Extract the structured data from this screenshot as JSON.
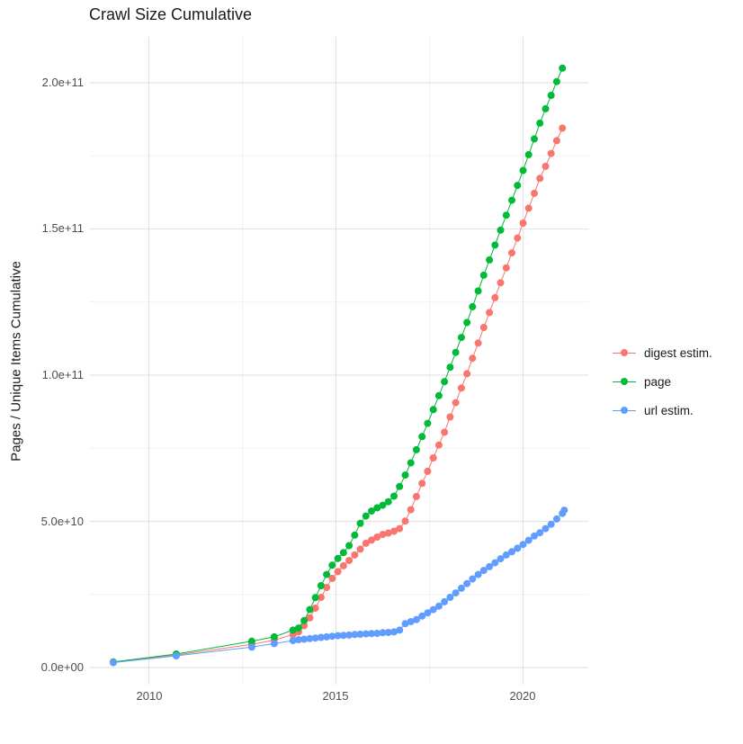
{
  "title": "Crawl Size Cumulative",
  "y_axis": {
    "title": "Pages / Unique Items Cumulative",
    "ticks": [
      "0.0e+00",
      "5.0e+10",
      "1.0e+11",
      "1.5e+11",
      "2.0e+11"
    ]
  },
  "x_axis": {
    "ticks": [
      "2010",
      "2015",
      "2020"
    ]
  },
  "legend": {
    "items": [
      {
        "label": "digest estim.",
        "color": "#F8766D"
      },
      {
        "label": "page",
        "color": "#00BA38"
      },
      {
        "label": "url estim.",
        "color": "#619CFF"
      }
    ]
  },
  "chart_data": {
    "type": "scatter",
    "style": "points connected by thin lines (ggplot-like)",
    "title": "Crawl Size Cumulative",
    "xlabel": "",
    "ylabel": "Pages / Unique Items Cumulative",
    "x_range": [
      2008.4,
      2021.8
    ],
    "y_range": [
      0,
      215
    ],
    "value_unit": "1e9 (values below are billions of pages / unique items)",
    "x_tick_values": [
      2010,
      2015,
      2020
    ],
    "y_tick_values": [
      0,
      50,
      100,
      150,
      200
    ],
    "y_tick_labels": [
      "0.0e+00",
      "5.0e+10",
      "1.0e+11",
      "1.5e+11",
      "2.0e+11"
    ],
    "x_minor_gridlines": [
      2012.5,
      2017.5
    ],
    "y_minor_gridlines": [
      25,
      75,
      125,
      175
    ],
    "grid": "major and minor, light gray on white",
    "legend_position": "right",
    "series": [
      {
        "name": "digest estim.",
        "color": "#F8766D",
        "points": [
          [
            2009.05,
            1.8
          ],
          [
            2010.73,
            4.3
          ],
          [
            2012.75,
            7.9
          ],
          [
            2013.35,
            9.4
          ],
          [
            2013.85,
            11.3
          ],
          [
            2014.0,
            12.2
          ],
          [
            2014.15,
            14.3
          ],
          [
            2014.3,
            17
          ],
          [
            2014.45,
            20.3
          ],
          [
            2014.6,
            24
          ],
          [
            2014.75,
            27.4
          ],
          [
            2014.9,
            30.5
          ],
          [
            2015.05,
            32.8
          ],
          [
            2015.2,
            34.8
          ],
          [
            2015.35,
            36.6
          ],
          [
            2015.5,
            38.5
          ],
          [
            2015.65,
            40.5
          ],
          [
            2015.8,
            42.5
          ],
          [
            2015.95,
            43.6
          ],
          [
            2016.1,
            44.6
          ],
          [
            2016.25,
            45.5
          ],
          [
            2016.4,
            46.0
          ],
          [
            2016.55,
            46.6
          ],
          [
            2016.7,
            47.5
          ],
          [
            2016.85,
            50.1
          ],
          [
            2017.0,
            54
          ],
          [
            2017.15,
            58.5
          ],
          [
            2017.3,
            63
          ],
          [
            2017.45,
            67.1
          ],
          [
            2017.6,
            71.7
          ],
          [
            2017.75,
            76.1
          ],
          [
            2017.9,
            80.5
          ],
          [
            2018.05,
            85.7
          ],
          [
            2018.2,
            90.6
          ],
          [
            2018.35,
            95.6
          ],
          [
            2018.5,
            100.5
          ],
          [
            2018.65,
            105.8
          ],
          [
            2018.8,
            111
          ],
          [
            2018.95,
            116.3
          ],
          [
            2019.1,
            121.4
          ],
          [
            2019.25,
            126.5
          ],
          [
            2019.4,
            131.6
          ],
          [
            2019.55,
            136.7
          ],
          [
            2019.7,
            141.8
          ],
          [
            2019.85,
            146.9
          ],
          [
            2020.0,
            152
          ],
          [
            2020.15,
            157.1
          ],
          [
            2020.3,
            162.2
          ],
          [
            2020.45,
            167.3
          ],
          [
            2020.6,
            171.4
          ],
          [
            2020.75,
            175.8
          ],
          [
            2020.9,
            180.2
          ],
          [
            2021.05,
            184.5
          ]
        ]
      },
      {
        "name": "page",
        "color": "#00BA38",
        "points": [
          [
            2009.05,
            1.9
          ],
          [
            2010.73,
            4.6
          ],
          [
            2012.75,
            9.0
          ],
          [
            2013.35,
            10.5
          ],
          [
            2013.85,
            12.8
          ],
          [
            2014.0,
            13.5
          ],
          [
            2014.15,
            16.1
          ],
          [
            2014.3,
            19.8
          ],
          [
            2014.45,
            23.9
          ],
          [
            2014.6,
            28
          ],
          [
            2014.75,
            31.8
          ],
          [
            2014.9,
            35
          ],
          [
            2015.05,
            37.3
          ],
          [
            2015.2,
            39.3
          ],
          [
            2015.35,
            41.7
          ],
          [
            2015.5,
            45.3
          ],
          [
            2015.65,
            49.3
          ],
          [
            2015.8,
            51.8
          ],
          [
            2015.95,
            53.5
          ],
          [
            2016.1,
            54.6
          ],
          [
            2016.25,
            55.5
          ],
          [
            2016.4,
            56.7
          ],
          [
            2016.55,
            58.6
          ],
          [
            2016.7,
            61.9
          ],
          [
            2016.85,
            65.8
          ],
          [
            2017.0,
            70
          ],
          [
            2017.15,
            74.5
          ],
          [
            2017.3,
            79
          ],
          [
            2017.45,
            83.5
          ],
          [
            2017.6,
            88.2
          ],
          [
            2017.75,
            93
          ],
          [
            2017.9,
            97.8
          ],
          [
            2018.05,
            102.7
          ],
          [
            2018.2,
            107.8
          ],
          [
            2018.35,
            112.9
          ],
          [
            2018.5,
            118
          ],
          [
            2018.65,
            123.4
          ],
          [
            2018.8,
            128.8
          ],
          [
            2018.95,
            134.2
          ],
          [
            2019.1,
            139.4
          ],
          [
            2019.25,
            144.5
          ],
          [
            2019.4,
            149.6
          ],
          [
            2019.55,
            154.7
          ],
          [
            2019.7,
            159.8
          ],
          [
            2019.85,
            164.9
          ],
          [
            2020.0,
            170
          ],
          [
            2020.15,
            175.4
          ],
          [
            2020.3,
            180.8
          ],
          [
            2020.45,
            186.2
          ],
          [
            2020.6,
            191.1
          ],
          [
            2020.75,
            195.7
          ],
          [
            2020.9,
            200.4
          ],
          [
            2021.05,
            205
          ]
        ]
      },
      {
        "name": "url estim.",
        "color": "#619CFF",
        "points": [
          [
            2009.05,
            1.7
          ],
          [
            2010.73,
            4.0
          ],
          [
            2012.75,
            7.0
          ],
          [
            2013.35,
            8.2
          ],
          [
            2013.85,
            9.2
          ],
          [
            2014.0,
            9.5
          ],
          [
            2014.15,
            9.7
          ],
          [
            2014.3,
            9.9
          ],
          [
            2014.45,
            10.1
          ],
          [
            2014.6,
            10.3
          ],
          [
            2014.75,
            10.5
          ],
          [
            2014.9,
            10.7
          ],
          [
            2015.05,
            10.9
          ],
          [
            2015.2,
            11.0
          ],
          [
            2015.35,
            11.1
          ],
          [
            2015.5,
            11.3
          ],
          [
            2015.65,
            11.4
          ],
          [
            2015.8,
            11.5
          ],
          [
            2015.95,
            11.6
          ],
          [
            2016.1,
            11.7
          ],
          [
            2016.25,
            11.9
          ],
          [
            2016.4,
            12.0
          ],
          [
            2016.55,
            12.2
          ],
          [
            2016.7,
            12.8
          ],
          [
            2016.85,
            15.0
          ],
          [
            2017.0,
            15.7
          ],
          [
            2017.15,
            16.4
          ],
          [
            2017.3,
            17.6
          ],
          [
            2017.45,
            18.7
          ],
          [
            2017.6,
            19.8
          ],
          [
            2017.75,
            21.0
          ],
          [
            2017.9,
            22.5
          ],
          [
            2018.05,
            24.0
          ],
          [
            2018.2,
            25.5
          ],
          [
            2018.35,
            27.1
          ],
          [
            2018.5,
            28.7
          ],
          [
            2018.65,
            30.3
          ],
          [
            2018.8,
            31.8
          ],
          [
            2018.95,
            33.2
          ],
          [
            2019.1,
            34.5
          ],
          [
            2019.25,
            35.8
          ],
          [
            2019.4,
            37.2
          ],
          [
            2019.55,
            38.5
          ],
          [
            2019.7,
            39.6
          ],
          [
            2019.85,
            40.8
          ],
          [
            2020.0,
            42.1
          ],
          [
            2020.15,
            43.5
          ],
          [
            2020.3,
            45.0
          ],
          [
            2020.45,
            46.1
          ],
          [
            2020.6,
            47.5
          ],
          [
            2020.75,
            49.0
          ],
          [
            2020.9,
            50.8
          ],
          [
            2021.05,
            52.7
          ],
          [
            2021.1,
            53.8
          ]
        ]
      }
    ]
  }
}
